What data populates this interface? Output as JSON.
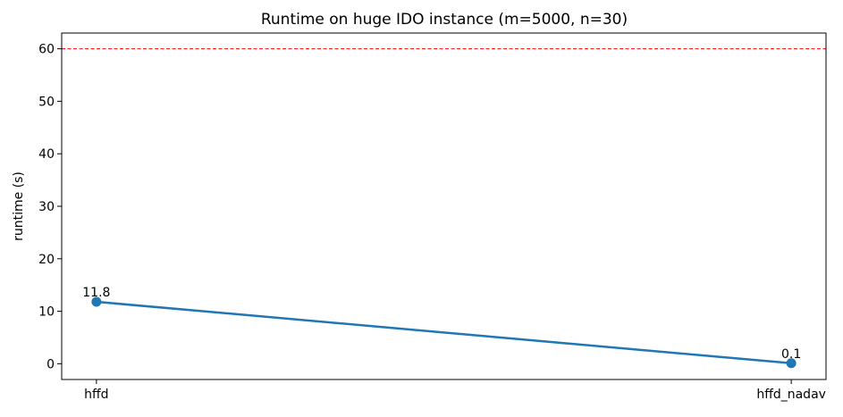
{
  "chart_data": {
    "type": "line",
    "title": "Runtime on huge IDO instance (m=5000, n=30)",
    "xlabel": "",
    "ylabel": "runtime (s)",
    "categories": [
      "hffd",
      "hffd_nadav"
    ],
    "series": [
      {
        "values": [
          11.8,
          0.1
        ],
        "data_labels": [
          "11.8",
          "0.1"
        ],
        "color": "#1f77b4"
      }
    ],
    "ylim": [
      -3.0,
      63.0
    ],
    "yticks": [
      0,
      10,
      20,
      30,
      40,
      50,
      60
    ],
    "reference_line": {
      "value": 60,
      "color": "#ff0000",
      "style": "dashed"
    },
    "grid": false,
    "legend": false
  }
}
